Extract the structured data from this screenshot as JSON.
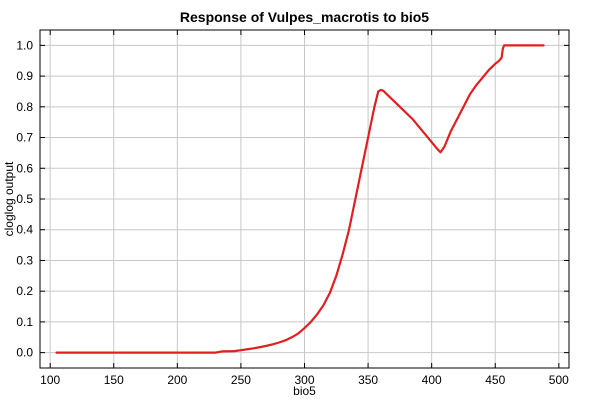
{
  "chart_data": {
    "type": "line",
    "title": "Response of Vulpes_macrotis to bio5",
    "xlabel": "bio5",
    "ylabel": "cloglog output",
    "xlim": [
      92,
      508
    ],
    "ylim": [
      -0.05,
      1.05
    ],
    "xticks": [
      100,
      150,
      200,
      250,
      300,
      350,
      400,
      450,
      500
    ],
    "yticks": [
      0.0,
      0.1,
      0.2,
      0.3,
      0.4,
      0.5,
      0.6,
      0.7,
      0.8,
      0.9,
      1.0
    ],
    "ytick_labels": [
      "0.0",
      "0.1",
      "0.2",
      "0.3",
      "0.4",
      "0.5",
      "0.6",
      "0.7",
      "0.8",
      "0.9",
      "1.0"
    ],
    "grid": true,
    "series": [
      {
        "color": "#e02020",
        "x": [
          105,
          150,
          200,
          230,
          235,
          245,
          250,
          255,
          260,
          265,
          270,
          275,
          280,
          285,
          290,
          295,
          300,
          305,
          310,
          315,
          320,
          325,
          330,
          335,
          338,
          340,
          345,
          350,
          355,
          358,
          360,
          362,
          365,
          370,
          375,
          380,
          385,
          390,
          395,
          400,
          405,
          407,
          410,
          415,
          420,
          425,
          430,
          435,
          440,
          445,
          450,
          453,
          455,
          456,
          457,
          460,
          470,
          480,
          488
        ],
        "y": [
          0.0,
          0.0,
          0.0,
          0.0,
          0.004,
          0.005,
          0.008,
          0.011,
          0.014,
          0.018,
          0.022,
          0.027,
          0.033,
          0.04,
          0.05,
          0.062,
          0.08,
          0.1,
          0.125,
          0.155,
          0.195,
          0.25,
          0.32,
          0.4,
          0.46,
          0.5,
          0.6,
          0.7,
          0.8,
          0.85,
          0.855,
          0.852,
          0.84,
          0.82,
          0.8,
          0.78,
          0.76,
          0.735,
          0.71,
          0.685,
          0.66,
          0.652,
          0.67,
          0.72,
          0.76,
          0.8,
          0.84,
          0.87,
          0.895,
          0.92,
          0.94,
          0.95,
          0.96,
          0.99,
          1.0,
          1.0,
          1.0,
          1.0,
          1.0
        ]
      }
    ]
  }
}
